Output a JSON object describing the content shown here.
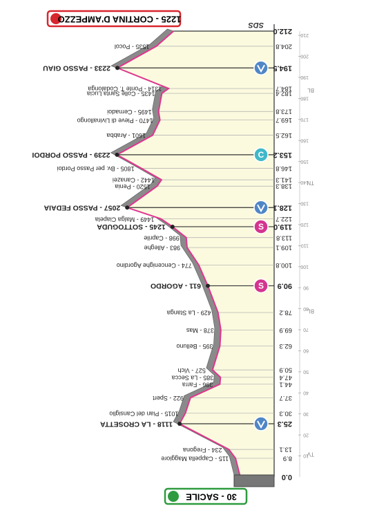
{
  "chart_data": {
    "type": "profile",
    "x": [
      0,
      8.9,
      13.1,
      25.3,
      30.3,
      37.7,
      44.1,
      47.4,
      50.9,
      62.3,
      69.9,
      78.2,
      90.9,
      100.8,
      109.1,
      113.8,
      119.0,
      122.7,
      128.1,
      138.3,
      141.3,
      146.8,
      153.2,
      162.5,
      169.7,
      173.8,
      182.4,
      184.7,
      194.5,
      204.8,
      212.0
    ],
    "values": [
      30,
      115,
      234,
      1118,
      1015,
      922,
      396,
      385,
      527,
      395,
      378,
      429,
      611,
      774,
      983,
      998,
      1245,
      1449,
      2057,
      1520,
      1442,
      1805,
      2239,
      1601,
      1470,
      1495,
      1435,
      1314,
      2233,
      1535,
      1225
    ],
    "point_labels": [
      "30 - SACILE",
      "115 - Cappella Maggiore",
      "234 - Fregona",
      "1118 - LA CROSETTA",
      "1015 - Pian del Cansiglio",
      "922 - Spert",
      "396 - Farra",
      "385 - La Secca",
      "527 - Vich",
      "395 - Belluno",
      "378 - Mas",
      "429 - La Stanga",
      "611 - AGORDO",
      "774 - Cencenighe Agordino",
      "983 - Alleghe",
      "998 - Caprile",
      "1245 - SOTTOGUDA",
      "1449 - Malga Ciapela",
      "2057 - PASSO FEDAIA",
      "1520 - Penia",
      "1442 - Canazei",
      "1805 - Bv. per Passo Pordoi",
      "2239 - PASSO PORDOI",
      "1601 - Arabba",
      "1470 - Pieve di Livinallongo",
      "1495 - Cernadoi",
      "1435 - Colle Santa Lucia",
      "1314 - Ponte T. Codalonga",
      "2233 - PASSO GIAU",
      "1535 - Pocol",
      "1225 - CORTINA D'AMPEZZO"
    ],
    "xlim": [
      0,
      212
    ],
    "ylim": [
      0,
      2500
    ],
    "xticks": [
      {
        "value": 0,
        "label": "0.0"
      },
      8.9,
      13.1,
      25.3,
      30.3,
      37.7,
      44.1,
      47.4,
      50.9,
      62.3,
      69.9,
      78.2,
      90.9,
      100.8,
      109.1,
      113.8,
      {
        "value": 119.0,
        "label": "119.0"
      },
      122.7,
      128.1,
      138.3,
      141.3,
      146.8,
      153.2,
      162.5,
      169.7,
      173.8,
      182.4,
      184.7,
      194.5,
      204.8,
      {
        "value": 212.0,
        "label": "212.0"
      }
    ],
    "minor_xticks": [
      10,
      20,
      30,
      40,
      50,
      60,
      70,
      80,
      90,
      100,
      110,
      120,
      130,
      140,
      150,
      160,
      170,
      180,
      190,
      200,
      210
    ],
    "regions": [
      {
        "text": "TV",
        "x": 11
      },
      {
        "text": "BL",
        "x": 79
      },
      {
        "text": "TN",
        "x": 140
      },
      {
        "text": "BL",
        "x": 184
      }
    ],
    "markers": [
      {
        "x": 25.3,
        "color": "#4f86c6"
      },
      {
        "x": 90.9,
        "color": "#d4348f",
        "label": "S"
      },
      {
        "x": 119.0,
        "color": "#d4348f",
        "label": "S"
      },
      {
        "x": 128.1,
        "color": "#4f86c6"
      },
      {
        "x": 153.2,
        "color": "#40b8c8",
        "label": "C"
      },
      {
        "x": 194.5,
        "color": "#4f86c6"
      }
    ],
    "logo": "SDS",
    "color": "#e0368f",
    "fill": "#fbfadf"
  }
}
